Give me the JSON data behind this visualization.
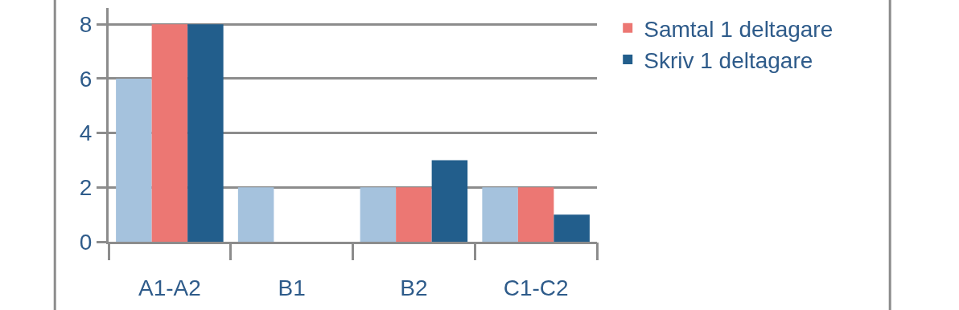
{
  "chart_data": {
    "type": "bar",
    "categories": [
      "A1-A2",
      "B1",
      "B2",
      "C1-C2"
    ],
    "series": [
      {
        "color": "#a5c2dd",
        "values": [
          6,
          2,
          2,
          2
        ]
      },
      {
        "name": "Samtal 1 deltagare",
        "color": "#ec7773",
        "values": [
          8,
          null,
          2,
          2
        ]
      },
      {
        "name": "Skriv 1 deltagare",
        "color": "#225e8c",
        "values": [
          8,
          null,
          3,
          1
        ]
      }
    ],
    "ylim": [
      0,
      8.6
    ],
    "yticks": [
      0,
      2,
      4,
      6,
      8
    ],
    "grid": "y",
    "legend": "top right"
  }
}
